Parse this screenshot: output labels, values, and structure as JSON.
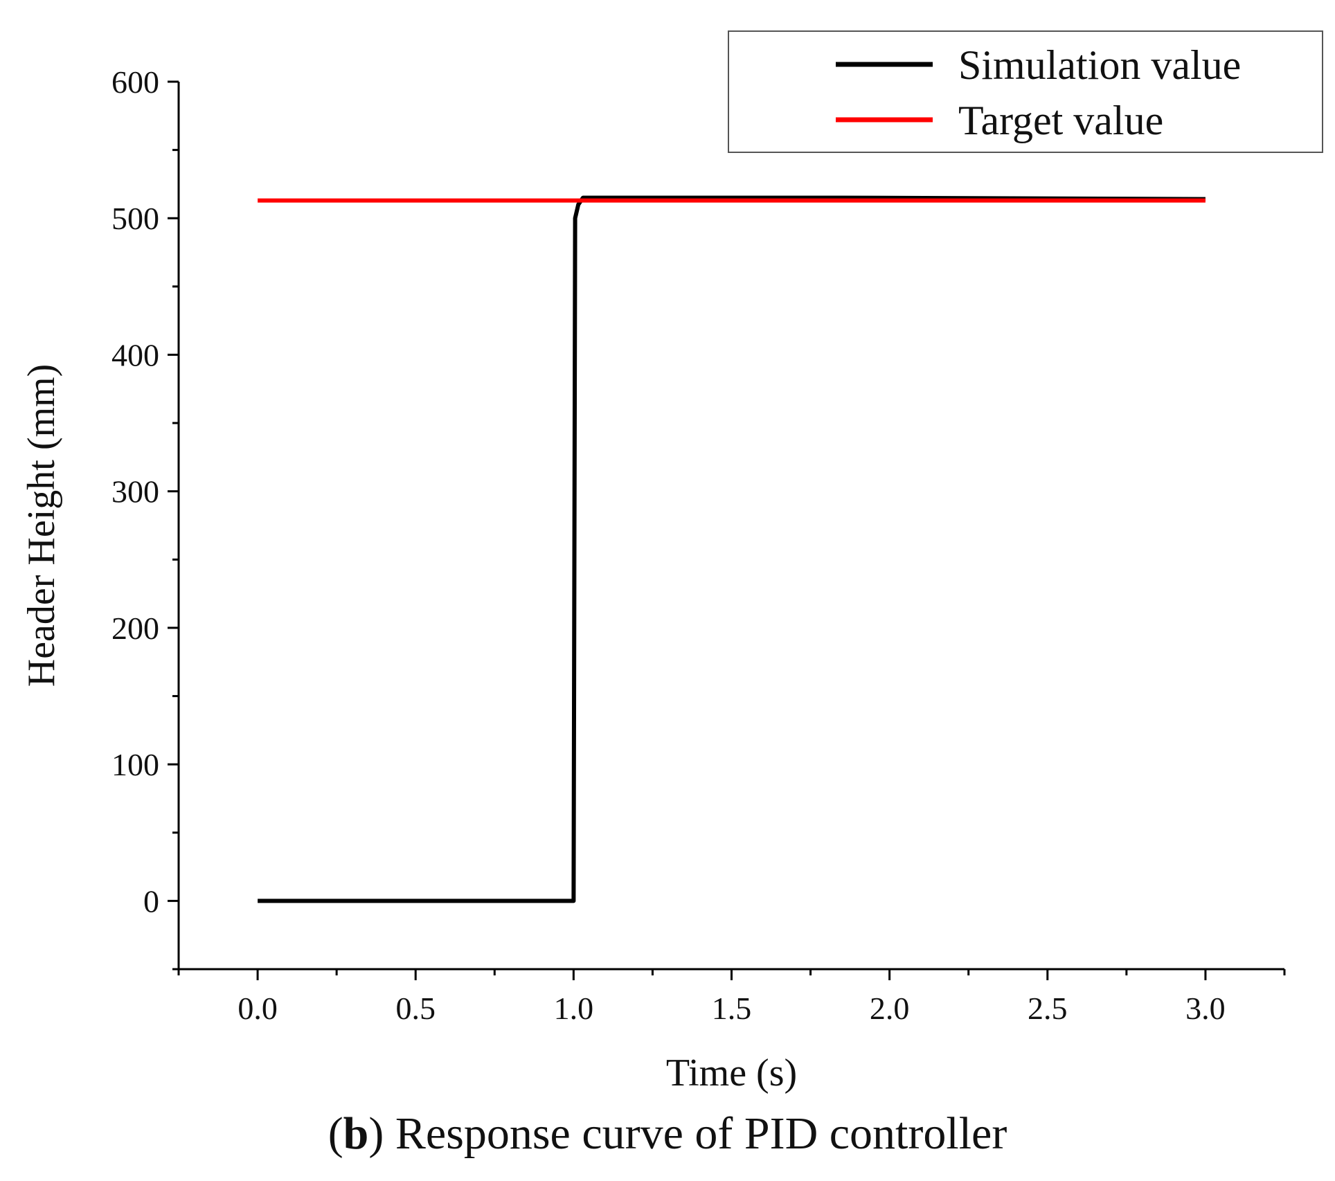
{
  "chart_data": {
    "type": "line",
    "xlabel": "Time (s)",
    "ylabel": "Header Height (mm)",
    "xlim": [
      -0.25,
      3.25
    ],
    "ylim": [
      -50,
      600
    ],
    "xticks": [
      0.0,
      0.5,
      1.0,
      1.5,
      2.0,
      2.5,
      3.0
    ],
    "xtick_labels": [
      "0.0",
      "0.5",
      "1.0",
      "1.5",
      "2.0",
      "2.5",
      "3.0"
    ],
    "yticks": [
      0,
      100,
      200,
      300,
      400,
      500,
      600
    ],
    "ytick_labels": [
      "0",
      "100",
      "200",
      "300",
      "400",
      "500",
      "600"
    ],
    "grid": false,
    "legend_position": "top-right",
    "series": [
      {
        "name": "Simulation value",
        "color": "#000000",
        "x": [
          0.0,
          1.0,
          1.005,
          1.015,
          1.03,
          1.5,
          1.85,
          3.0
        ],
        "y": [
          0,
          0,
          500,
          510,
          515,
          515,
          515,
          514
        ]
      },
      {
        "name": "Target value",
        "color": "#ff0000",
        "x": [
          0.0,
          3.0
        ],
        "y": [
          513,
          513
        ]
      }
    ]
  },
  "caption": {
    "label": "b",
    "text": "Response curve of PID controller"
  }
}
